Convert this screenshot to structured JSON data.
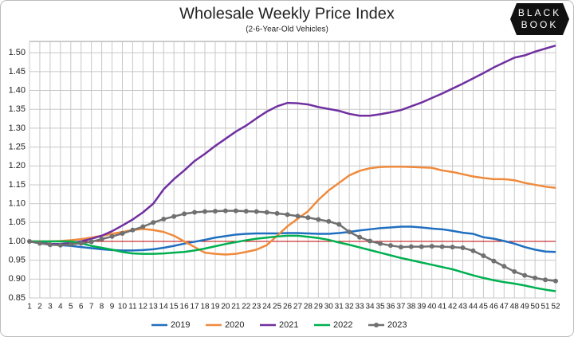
{
  "logo": [
    "BLACK",
    "BOOK"
  ],
  "chart_data": {
    "type": "line",
    "title": "Wholesale Weekly Price Index",
    "subtitle": "(2-6-Year-Old Vehicles)",
    "x": [
      1,
      2,
      3,
      4,
      5,
      6,
      7,
      8,
      9,
      10,
      11,
      12,
      13,
      14,
      15,
      16,
      17,
      18,
      19,
      20,
      21,
      22,
      23,
      24,
      25,
      26,
      27,
      28,
      29,
      30,
      31,
      32,
      33,
      34,
      35,
      36,
      37,
      38,
      39,
      40,
      41,
      42,
      43,
      44,
      45,
      46,
      47,
      48,
      49,
      50,
      51,
      52
    ],
    "xlim": [
      1,
      52
    ],
    "ylim": [
      0.85,
      1.53
    ],
    "yticks": [
      0.85,
      {
        "value": 0.9,
        "label": "0.90"
      },
      0.95,
      {
        "value": 1,
        "label": "1.00"
      },
      1.05,
      {
        "value": 1.1,
        "label": "1.10"
      },
      1.15,
      {
        "value": 1.2,
        "label": "1.20"
      },
      1.25,
      {
        "value": 1.3,
        "label": "1.30"
      },
      1.35,
      {
        "value": 1.4,
        "label": "1.40"
      },
      1.45,
      {
        "value": 1.5,
        "label": "1.50"
      }
    ],
    "grid": true,
    "reference_line": {
      "value": 1,
      "color": "#c00000"
    },
    "legend": "bottom",
    "series": [
      {
        "name": "2019",
        "color": "#1f6fc0",
        "marker": false,
        "values": [
          1.0,
          0.997,
          0.993,
          0.99,
          0.988,
          0.985,
          0.982,
          0.979,
          0.977,
          0.976,
          0.976,
          0.977,
          0.979,
          0.983,
          0.988,
          0.994,
          0.999,
          1.004,
          1.01,
          1.014,
          1.018,
          1.02,
          1.021,
          1.021,
          1.021,
          1.022,
          1.022,
          1.021,
          1.02,
          1.02,
          1.022,
          1.025,
          1.029,
          1.032,
          1.035,
          1.037,
          1.039,
          1.039,
          1.037,
          1.034,
          1.032,
          1.028,
          1.023,
          1.02,
          1.011,
          1.007,
          1.001,
          0.994,
          0.985,
          0.978,
          0.973,
          0.972
        ]
      },
      {
        "name": "2020",
        "color": "#f08a3c",
        "marker": false,
        "values": [
          1.0,
          1.0,
          1.0,
          1.001,
          1.003,
          1.006,
          1.01,
          1.015,
          1.02,
          1.025,
          1.03,
          1.033,
          1.03,
          1.025,
          1.015,
          1.0,
          0.985,
          0.97,
          0.967,
          0.965,
          0.967,
          0.972,
          0.978,
          0.99,
          1.015,
          1.04,
          1.06,
          1.08,
          1.11,
          1.135,
          1.155,
          1.175,
          1.187,
          1.194,
          1.197,
          1.198,
          1.198,
          1.197,
          1.196,
          1.195,
          1.188,
          1.184,
          1.178,
          1.172,
          1.168,
          1.165,
          1.165,
          1.162,
          1.155,
          1.15,
          1.145,
          1.142
        ]
      },
      {
        "name": "2021",
        "color": "#7030a0",
        "marker": false,
        "values": [
          1.0,
          0.995,
          0.993,
          0.993,
          0.996,
          1.0,
          1.007,
          1.015,
          1.027,
          1.042,
          1.058,
          1.077,
          1.1,
          1.138,
          1.165,
          1.188,
          1.213,
          1.232,
          1.253,
          1.272,
          1.291,
          1.307,
          1.326,
          1.344,
          1.358,
          1.367,
          1.366,
          1.363,
          1.356,
          1.351,
          1.346,
          1.338,
          1.333,
          1.333,
          1.337,
          1.342,
          1.348,
          1.358,
          1.368,
          1.38,
          1.392,
          1.405,
          1.418,
          1.432,
          1.446,
          1.461,
          1.474,
          1.487,
          1.493,
          1.503,
          1.511,
          1.519
        ]
      },
      {
        "name": "2022",
        "color": "#00b050",
        "marker": false,
        "values": [
          1.0,
          1.0,
          1.0,
          1.0,
          1.0,
          0.995,
          0.988,
          0.983,
          0.978,
          0.972,
          0.968,
          0.967,
          0.967,
          0.968,
          0.97,
          0.972,
          0.976,
          0.981,
          0.987,
          0.993,
          0.998,
          1.003,
          1.007,
          1.01,
          1.013,
          1.015,
          1.015,
          1.012,
          1.009,
          1.004,
          0.997,
          0.991,
          0.984,
          0.977,
          0.97,
          0.963,
          0.956,
          0.95,
          0.944,
          0.938,
          0.932,
          0.926,
          0.918,
          0.91,
          0.903,
          0.897,
          0.892,
          0.888,
          0.883,
          0.877,
          0.872,
          0.868
        ]
      },
      {
        "name": "2023",
        "color": "#707070",
        "marker": true,
        "values": [
          1.0,
          0.995,
          0.991,
          0.99,
          0.992,
          0.995,
          0.999,
          1.006,
          1.013,
          1.021,
          1.03,
          1.039,
          1.05,
          1.059,
          1.066,
          1.073,
          1.077,
          1.079,
          1.08,
          1.081,
          1.081,
          1.08,
          1.079,
          1.077,
          1.074,
          1.071,
          1.067,
          1.063,
          1.058,
          1.053,
          1.045,
          1.025,
          1.011,
          1.001,
          0.994,
          0.989,
          0.985,
          0.986,
          0.986,
          0.987,
          0.986,
          0.985,
          0.983,
          0.975,
          0.962,
          0.948,
          0.934,
          0.92,
          0.91,
          0.903,
          0.898,
          0.895
        ]
      }
    ]
  }
}
